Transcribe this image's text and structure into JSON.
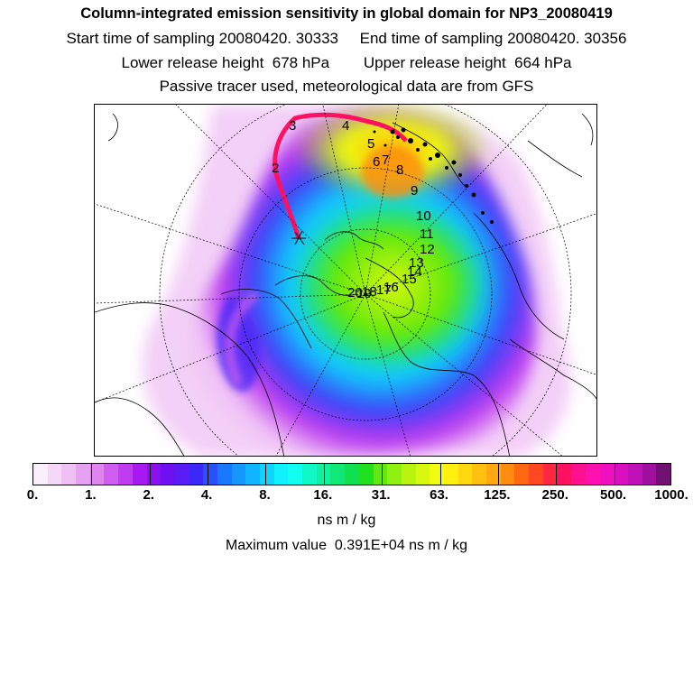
{
  "header": {
    "title": "Column-integrated emission sensitivity in global domain for NP3_20080419",
    "sampling_line": "Start time of sampling 20080420. 30333     End time of sampling 20080420. 30356",
    "release_line": "Lower release height  678 hPa        Upper release height  664 hPa",
    "tracer_line": "Passive tracer used, meteorological data are from GFS"
  },
  "map": {
    "trajectory_labels": [
      "2",
      "3",
      "4",
      "5",
      "6",
      "7",
      "8",
      "9",
      "10",
      "11",
      "12",
      "13",
      "14",
      "15",
      "16",
      "17",
      "18",
      "19",
      "20"
    ],
    "colors": {
      "ocean": "#ffffff",
      "coastline": "#000000",
      "trajectory": "#ff1060"
    }
  },
  "colorbar": {
    "colors": [
      "#fbeefc",
      "#f5d8f8",
      "#efc0f4",
      "#e6a2f0",
      "#de86ee",
      "#cf5ef0",
      "#bf3cf0",
      "#a818f0",
      "#8a10f0",
      "#6e10f0",
      "#5a1cf6",
      "#3c28f8",
      "#2850ff",
      "#1878ff",
      "#1498ff",
      "#10b4ff",
      "#10d4ff",
      "#10f0ff",
      "#10fff0",
      "#10f8c8",
      "#10f0a0",
      "#10e878",
      "#10e050",
      "#20e020",
      "#60e810",
      "#90f010",
      "#b8f410",
      "#d8f810",
      "#f0fc10",
      "#fff010",
      "#ffd810",
      "#ffc010",
      "#ffa810",
      "#ff8c10",
      "#ff6810",
      "#ff4820",
      "#ff2840",
      "#ff1060",
      "#ff1090",
      "#ff10b0",
      "#f010c0",
      "#d810c0",
      "#c010b8",
      "#a010a0",
      "#701070"
    ],
    "tick_labels": [
      "0.",
      "1.",
      "2.",
      "4.",
      "8.",
      "16.",
      "31.",
      "63.",
      "125.",
      "250.",
      "500.",
      "1000."
    ],
    "units": "ns m / kg"
  },
  "footer": {
    "maximum_label": "Maximum value  0.391E+04 ns m / kg"
  }
}
